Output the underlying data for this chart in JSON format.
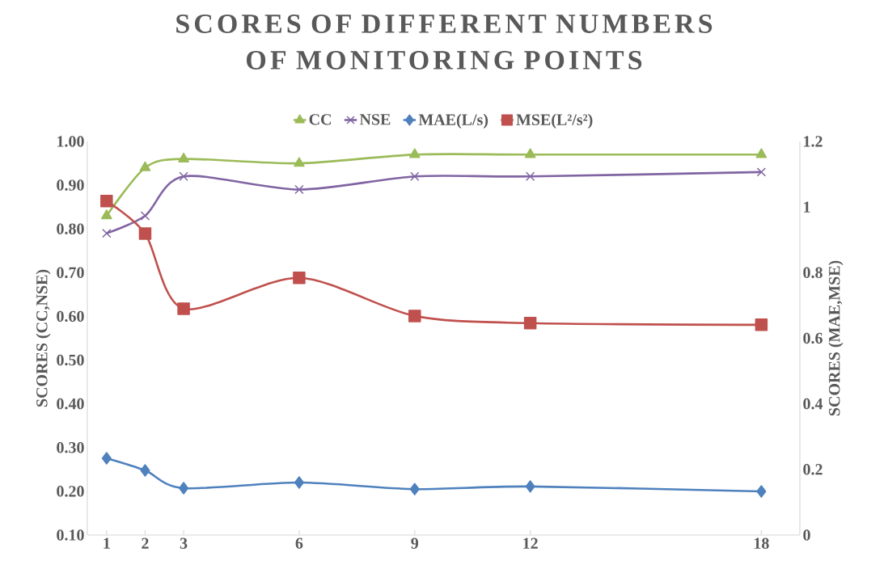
{
  "chart_data": {
    "type": "line",
    "title": "SCORES OF DIFFERENT NUMBERS OF MONITORING POINTS",
    "ylabel": "SCORES (CC,NSE)",
    "y2label": "SCORES (MAE,MSE)",
    "x": [
      1,
      2,
      3,
      6,
      9,
      12,
      18
    ],
    "xlim": [
      0.5,
      19
    ],
    "xticks": [
      1,
      2,
      3,
      6,
      9,
      12,
      18
    ],
    "ylim": [
      0.1,
      1.0
    ],
    "yticks": [
      {
        "value": 0.1,
        "label": "0.10"
      },
      {
        "value": 0.2,
        "label": "0.20"
      },
      {
        "value": 0.3,
        "label": "0.30"
      },
      {
        "value": 0.4,
        "label": "0.40"
      },
      {
        "value": 0.5,
        "label": "0.50"
      },
      {
        "value": 0.6,
        "label": "0.60"
      },
      {
        "value": 0.7,
        "label": "0.70"
      },
      {
        "value": 0.8,
        "label": "0.80"
      },
      {
        "value": 0.9,
        "label": "0.90"
      },
      {
        "value": 1.0,
        "label": "1.00"
      }
    ],
    "y2lim": [
      0,
      1.2
    ],
    "y2ticks": [
      0,
      0.2,
      0.4,
      0.6,
      0.8,
      1,
      1.2
    ],
    "legend": "top",
    "series": [
      {
        "name": "CC",
        "color": "#9bbb59",
        "marker": "triangle",
        "values": [
          0.83,
          0.94,
          0.96,
          0.95,
          0.97,
          0.97,
          0.97
        ]
      },
      {
        "name": "NSE",
        "color": "#8064a2",
        "marker": "cross",
        "values": [
          0.79,
          0.83,
          0.92,
          0.89,
          0.92,
          0.92,
          0.93
        ]
      },
      {
        "name": "MAE(L/s)",
        "color": "#4f81bd",
        "marker": "diamond",
        "axis": "y2",
        "values": [
          0.234,
          0.197,
          0.143,
          0.16,
          0.14,
          0.148,
          0.133
        ]
      },
      {
        "name": "MSE(L²/s²)",
        "color": "#c0504d",
        "marker": "square",
        "axis": "y2",
        "values": [
          1.018,
          0.919,
          0.69,
          0.784,
          0.668,
          0.646,
          0.641
        ]
      }
    ]
  }
}
